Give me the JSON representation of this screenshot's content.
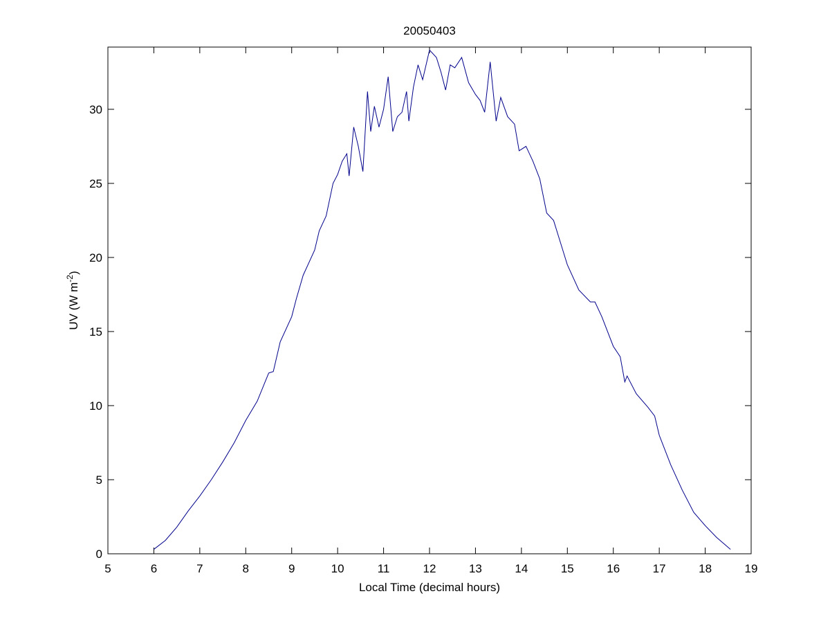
{
  "chart_data": {
    "type": "line",
    "title": "20050403",
    "x_label": "Local Time (decimal hours)",
    "y_label": {
      "text": "UV (W m",
      "superscript": "-2",
      "suffix": ")"
    },
    "xlim": [
      5,
      19
    ],
    "xticks": [
      5,
      6,
      7,
      8,
      9,
      10,
      11,
      12,
      13,
      14,
      15,
      16,
      17,
      18,
      19
    ],
    "ylim": [
      0,
      34.2
    ],
    "yticks": [
      0,
      5,
      10,
      15,
      20,
      25,
      30
    ],
    "series": [
      {
        "color": "#00008b",
        "x": [
          6.0,
          6.25,
          6.5,
          6.75,
          7.0,
          7.25,
          7.5,
          7.75,
          8.0,
          8.25,
          8.5,
          8.6,
          8.75,
          9.0,
          9.1,
          9.25,
          9.5,
          9.6,
          9.75,
          9.9,
          10.0,
          10.1,
          10.2,
          10.25,
          10.35,
          10.45,
          10.55,
          10.65,
          10.72,
          10.8,
          10.9,
          11.0,
          11.1,
          11.2,
          11.3,
          11.4,
          11.5,
          11.55,
          11.65,
          11.75,
          11.85,
          12.0,
          12.15,
          12.25,
          12.35,
          12.45,
          12.55,
          12.7,
          12.85,
          13.0,
          13.1,
          13.2,
          13.32,
          13.45,
          13.55,
          13.7,
          13.85,
          13.95,
          14.1,
          14.25,
          14.4,
          14.55,
          14.7,
          14.85,
          15.0,
          15.25,
          15.5,
          15.6,
          15.75,
          16.0,
          16.15,
          16.25,
          16.3,
          16.5,
          16.75,
          16.9,
          17.0,
          17.25,
          17.5,
          17.75,
          18.0,
          18.25,
          18.55
        ],
        "values": [
          0.3,
          0.9,
          1.8,
          2.9,
          3.9,
          5.0,
          6.2,
          7.5,
          9.0,
          10.3,
          12.2,
          12.3,
          14.3,
          16.0,
          17.2,
          18.8,
          20.5,
          21.8,
          22.8,
          25.0,
          25.6,
          26.5,
          27.0,
          25.5,
          28.8,
          27.5,
          25.8,
          31.2,
          28.5,
          30.2,
          28.8,
          30.0,
          32.2,
          28.5,
          29.5,
          29.8,
          31.2,
          29.2,
          31.5,
          33.0,
          32.0,
          34.0,
          33.5,
          32.5,
          31.3,
          33.0,
          32.8,
          33.5,
          31.8,
          31.0,
          30.6,
          29.8,
          33.2,
          29.2,
          30.8,
          29.5,
          29.0,
          27.2,
          27.5,
          26.5,
          25.3,
          23.0,
          22.5,
          21.0,
          19.5,
          17.8,
          17.0,
          17.0,
          16.0,
          14.0,
          13.3,
          11.6,
          12.0,
          10.8,
          9.9,
          9.3,
          8.0,
          6.0,
          4.3,
          2.8,
          1.9,
          1.1,
          0.3
        ]
      }
    ]
  }
}
